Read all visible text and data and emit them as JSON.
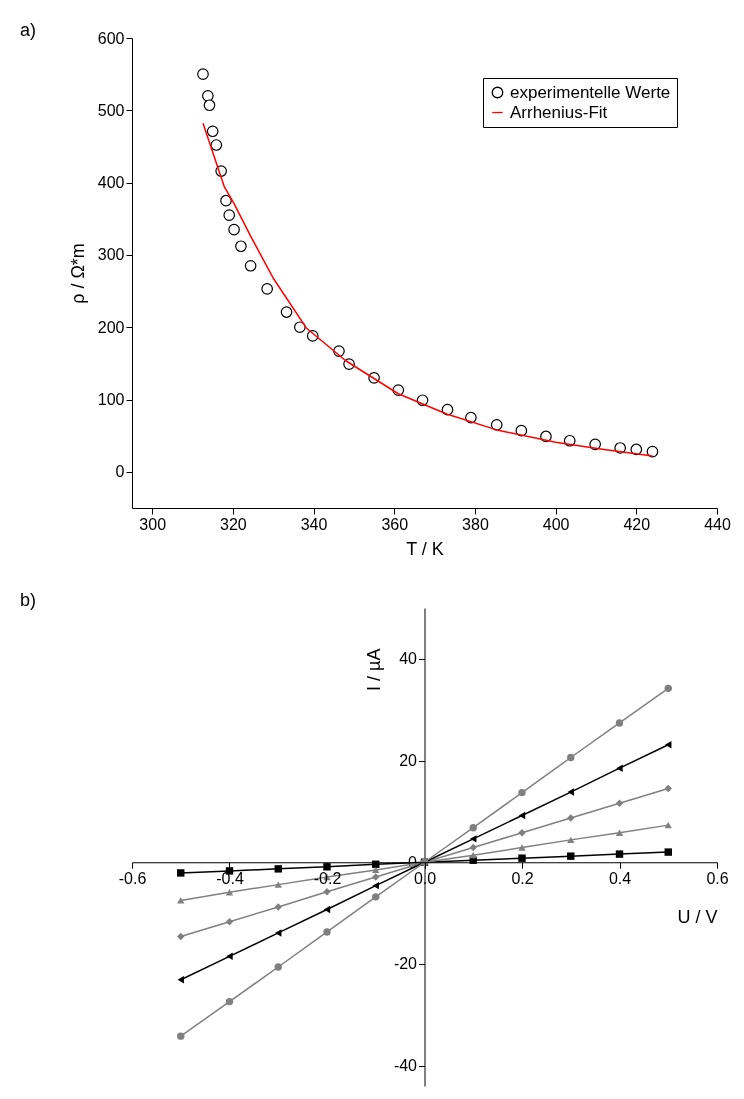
{
  "chart_data": [
    {
      "type": "scatter",
      "xlabel": "T / K",
      "ylabel": "ρ / Ω*m",
      "annotations": [
        "a)"
      ],
      "xlim": [
        295,
        440
      ],
      "xticks": [
        300,
        320,
        340,
        360,
        380,
        400,
        420,
        440
      ],
      "ylim": [
        -50,
        600
      ],
      "yticks": [
        0,
        100,
        200,
        300,
        400,
        500,
        600
      ],
      "legend": "top right",
      "grid": false,
      "series": [
        {
          "name": "experimentelle Werte",
          "marker": "circle",
          "color": "#000000",
          "x": [
            312.6,
            313.8,
            314.2,
            315.0,
            315.9,
            317.1,
            318.3,
            319.1,
            320.3,
            322.0,
            324.4,
            328.5,
            333.3,
            336.6,
            339.8,
            346.3,
            348.8,
            355.0,
            361.0,
            367.0,
            373.2,
            379.0,
            385.4,
            391.5,
            397.6,
            403.5,
            409.8,
            416.0,
            420.0,
            424.0
          ],
          "values": [
            550,
            520,
            507,
            471,
            452,
            416,
            375,
            355,
            335,
            312,
            285,
            253,
            221,
            200,
            188,
            167,
            149,
            130,
            113,
            99,
            86,
            75,
            65,
            57,
            49,
            43,
            38,
            33,
            31,
            28
          ]
        },
        {
          "name": "Arrhenius-Fit",
          "type": "line",
          "marker": "none",
          "color": "#ff0000",
          "x": [
            312.6,
            317.9,
            320.3,
            324.4,
            330.1,
            338.2,
            347.9,
            361.0,
            373.0,
            385.4,
            400.0,
            412.0,
            424.0
          ],
          "values": [
            482,
            394,
            371,
            326,
            267,
            199,
            154,
            108,
            80,
            58,
            41,
            31,
            22
          ]
        }
      ]
    },
    {
      "type": "line",
      "xlabel": "U / V",
      "ylabel": "I / µA",
      "annotations": [
        "b)"
      ],
      "xlim": [
        -0.6,
        0.6
      ],
      "xticks": [
        -0.6,
        -0.4,
        -0.2,
        {
          "value": 0,
          "label": "0.0"
        },
        0.2,
        0.4,
        0.6
      ],
      "ylim": [
        -44,
        50
      ],
      "yticks": [
        -40,
        -20,
        0,
        20,
        40
      ],
      "grid": false,
      "x": [
        -0.5,
        -0.4,
        -0.3,
        -0.2,
        -0.1,
        0,
        0.1,
        0.2,
        0.3,
        0.4,
        0.5
      ],
      "series": [
        {
          "marker": "square",
          "color": "#000000",
          "values": [
            -2.1,
            -1.7,
            -1.3,
            -0.9,
            -0.4,
            0,
            0.4,
            0.8,
            1.2,
            1.6,
            2.0
          ]
        },
        {
          "marker": "triangle",
          "color": "#808080",
          "values": [
            -7.5,
            -5.9,
            -4.4,
            -2.9,
            -1.5,
            0,
            1.4,
            2.9,
            4.4,
            5.8,
            7.3
          ]
        },
        {
          "marker": "diamond",
          "color": "#808080",
          "values": [
            -14.6,
            -11.7,
            -8.8,
            -5.8,
            -2.9,
            0,
            2.9,
            5.8,
            8.7,
            11.6,
            14.5
          ]
        },
        {
          "marker": "triangle-left",
          "color": "#000000",
          "values": [
            -23.1,
            -18.5,
            -13.9,
            -9.3,
            -4.6,
            0,
            4.6,
            9.2,
            13.8,
            18.5,
            23.1
          ]
        },
        {
          "marker": "circle",
          "color": "#808080",
          "values": [
            -34.2,
            -27.4,
            -20.6,
            -13.7,
            -6.8,
            0,
            6.8,
            13.7,
            20.6,
            27.4,
            34.2
          ]
        }
      ]
    }
  ]
}
